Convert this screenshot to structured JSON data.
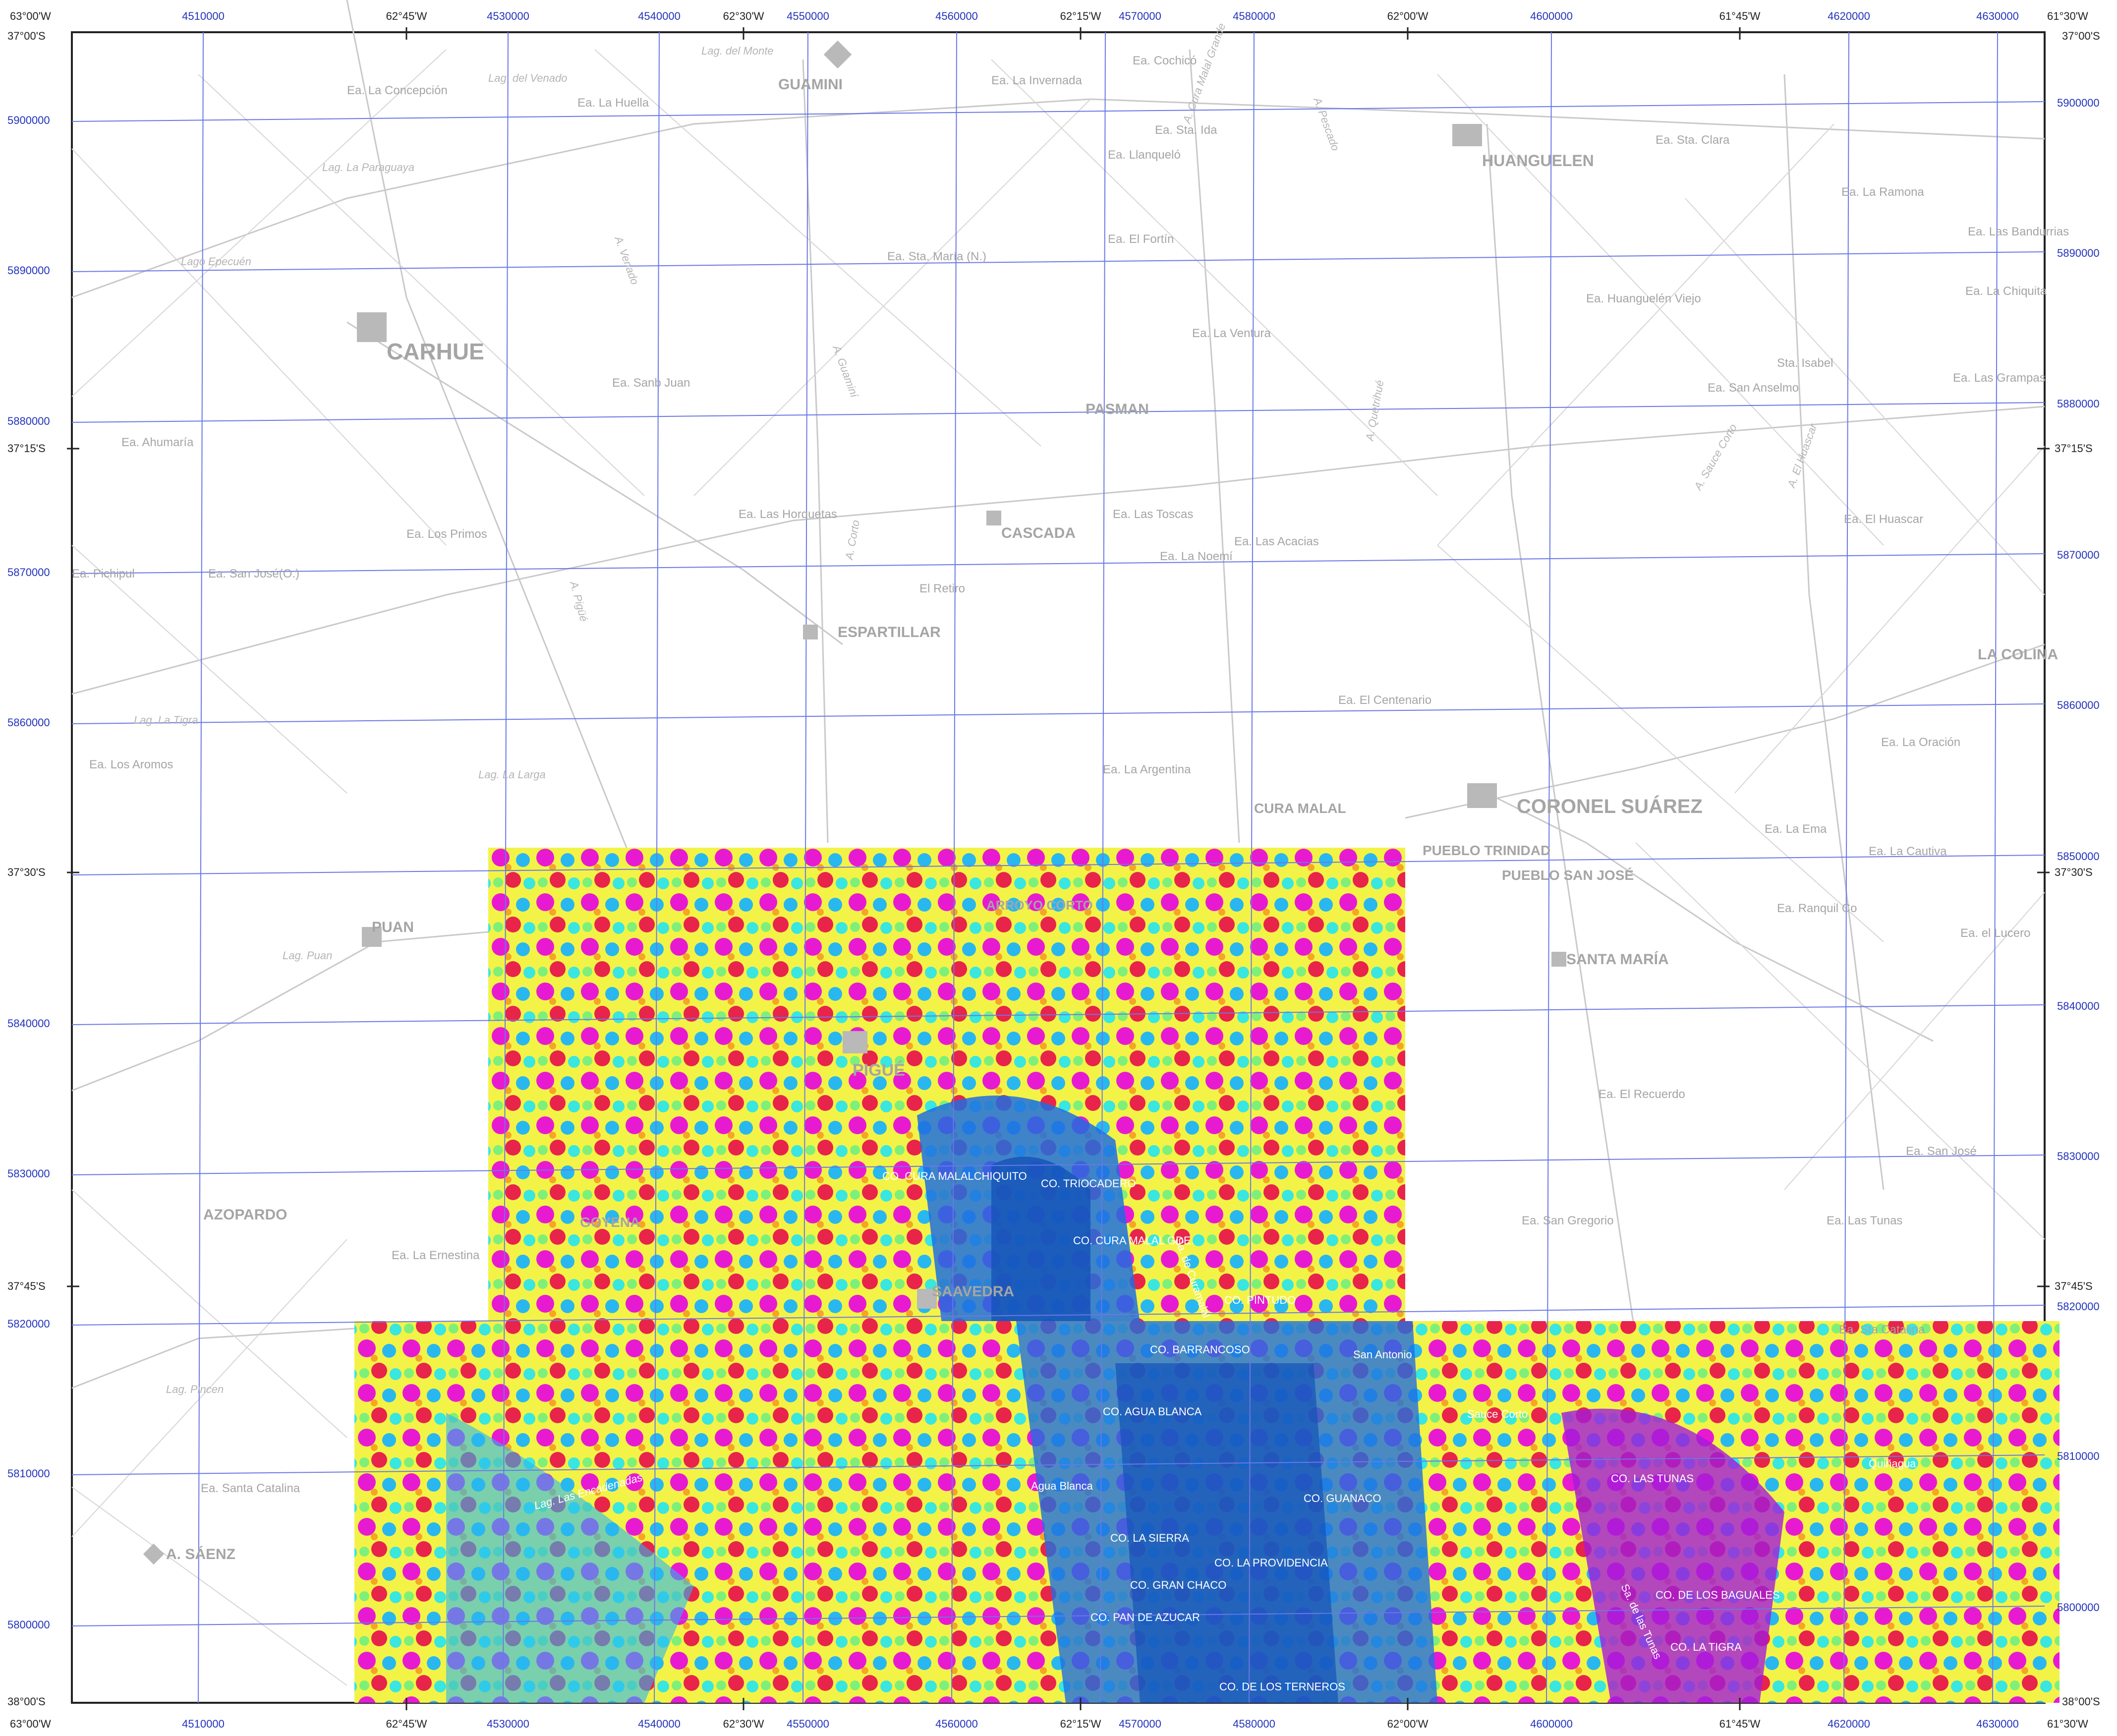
{
  "edge_labels": {
    "top_left_corner": "63°00'W",
    "left_top_corner": "37°00'S",
    "top_right_corner": "61°30'W",
    "right_top_corner": "37°00'S",
    "bottom_left_corner": "63°00'W",
    "left_bottom_corner": "38°00'S",
    "bottom_right_corner": "61°30'W",
    "right_bottom_corner": "38°00'S"
  },
  "longitude_ticks": [
    "62°45'W",
    "62°30'W",
    "62°15'W",
    "62°00'W",
    "61°45'W"
  ],
  "latitude_ticks": [
    "37°15'S",
    "37°30'S",
    "37°45'S"
  ],
  "easting_ticks": [
    "4510000",
    "4530000",
    "4540000",
    "4550000",
    "4560000",
    "4570000",
    "4580000",
    "4600000",
    "4620000",
    "4630000"
  ],
  "northing_ticks": [
    "5900000",
    "5890000",
    "5880000",
    "5870000",
    "5860000",
    "5850000",
    "5840000",
    "5830000",
    "5820000",
    "5810000",
    "5800000"
  ],
  "towns": [
    {
      "name": "CARHUE"
    },
    {
      "name": "GUAMINI"
    },
    {
      "name": "HUANGUELEN"
    },
    {
      "name": "PASMAN"
    },
    {
      "name": "CASCADA"
    },
    {
      "name": "ESPARTILLAR"
    },
    {
      "name": "CURA MALAL"
    },
    {
      "name": "CORONEL SUÁREZ"
    },
    {
      "name": "PUEBLO TRINIDAD"
    },
    {
      "name": "PUEBLO SAN JOSÉ"
    },
    {
      "name": "SANTA MARÍA"
    },
    {
      "name": "PUAN"
    },
    {
      "name": "PIGUÉ"
    },
    {
      "name": "ARROYO CORTO"
    },
    {
      "name": "SAAVEDRA"
    },
    {
      "name": "AZOPARDO"
    },
    {
      "name": "A. SÁENZ"
    },
    {
      "name": "LA COLINA"
    },
    {
      "name": "GOYENA"
    }
  ],
  "estancias": [
    {
      "name": "Ea. La Concepción"
    },
    {
      "name": "Ea. La Huella"
    },
    {
      "name": "Ea. La Invernada"
    },
    {
      "name": "Ea. Cochicó"
    },
    {
      "name": "Ea. Sta. Ida"
    },
    {
      "name": "Ea. Llanqueló"
    },
    {
      "name": "Ea. El Fortín"
    },
    {
      "name": "Ea. Sta. María (N.)"
    },
    {
      "name": "Ea. La Ventura"
    },
    {
      "name": "Ea. Sanb Juan"
    },
    {
      "name": "Ea. Ahumaría"
    },
    {
      "name": "Ea. Los Primos"
    },
    {
      "name": "Ea. Pichipul"
    },
    {
      "name": "Ea. San José(O.)"
    },
    {
      "name": "Ea. Las Horquetas"
    },
    {
      "name": "Ea. Las Toscas"
    },
    {
      "name": "Ea. La Noemí"
    },
    {
      "name": "Ea. Las Acacias"
    },
    {
      "name": "El Retiro"
    },
    {
      "name": "Ea. El Centenario"
    },
    {
      "name": "Ea. La Argentina"
    },
    {
      "name": "Ea. Los Aromos"
    },
    {
      "name": "Ea. Sta. Clara"
    },
    {
      "name": "Ea. La Ramona"
    },
    {
      "name": "Ea. Las Bandurrias"
    },
    {
      "name": "Ea. Huanguelén Viejo"
    },
    {
      "name": "Ea. La Chiquita"
    },
    {
      "name": "Ea. San Anselmo"
    },
    {
      "name": "Sta. Isabel"
    },
    {
      "name": "Ea. Las Grampas"
    },
    {
      "name": "Ea. El Huascar"
    },
    {
      "name": "Ea. La Oración"
    },
    {
      "name": "Ea. La Ema"
    },
    {
      "name": "Ea. La Cautiva"
    },
    {
      "name": "Ea. Ranquil Co"
    },
    {
      "name": "Ea. el Lucero"
    },
    {
      "name": "Ea. El Recuerdo"
    },
    {
      "name": "Ea. San Gregorio"
    },
    {
      "name": "Ea. Las Tunas"
    },
    {
      "name": "Ea. San José"
    },
    {
      "name": "Ea. La Ernestina"
    },
    {
      "name": "Ea. Santa Catalina"
    },
    {
      "name": "Ea. Sta Catalina"
    }
  ],
  "water_features": [
    "Lag. del Monte",
    "Lag. del Venado",
    "Lag. La Paraguaya",
    "Lago Epecuén",
    "Lag. La Tigra",
    "Lag. La Larga",
    "Lag. Puan",
    "Lag. Pincen",
    "Lag. Las Encadenadas",
    "A. Cura Malal Grande",
    "A. Pescado",
    "A. Venado",
    "A. Guaminí",
    "A. Corto",
    "A. Pigüé",
    "A. Sauce Corto",
    "A. El Huascar",
    "A. Quetrihué"
  ],
  "survey_features": [
    "CO. CURA MALALCHIQUITO",
    "CO. TRIOCADERO",
    "CO. CURA MALAL GDE.",
    "CO. PINTUDO",
    "CO. BARRANCOSO",
    "CO. AGUA BLANCA",
    "CO. GUANACO",
    "CO. LA SIERRA",
    "CO. LA PROVIDENCIA",
    "CO. GRAN CHACO",
    "CO. PAN DE AZUCAR",
    "CO. DE LOS TERNEROS",
    "CO. LAS TUNAS",
    "CO. DE LOS BAGUALES",
    "CO. LA TIGRA",
    "Agua Blanca",
    "San Antonio",
    "Sauce Corto",
    "Quiñagua",
    "Sa. de las Tunas",
    "Sa. de Curamalal"
  ],
  "legend_note": "",
  "colors": {
    "grid_blue": "#3b4fd6",
    "base_line": "#c7c7c7",
    "base_text": "#a8a8a8",
    "anomaly_scale": [
      "#1f6fe0",
      "#29b7f0",
      "#39e6e0",
      "#7ef07a",
      "#f3f347",
      "#f5a623",
      "#e8244a",
      "#e71ad1",
      "#a21cd9"
    ]
  }
}
